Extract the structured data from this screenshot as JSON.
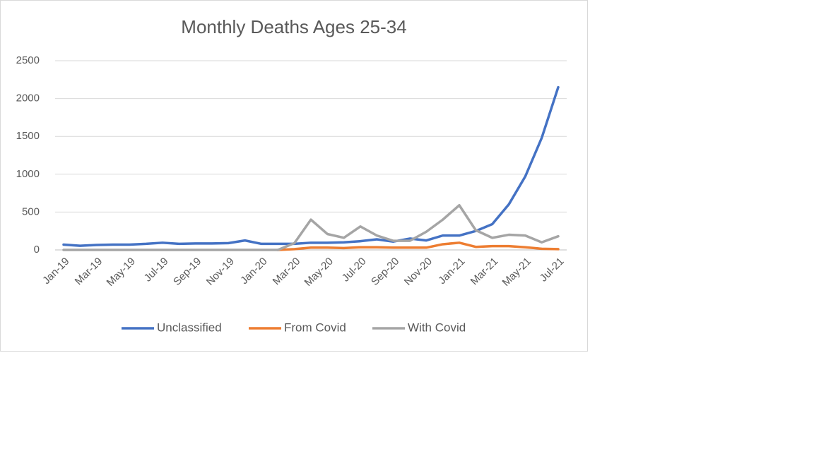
{
  "chart_data": {
    "type": "line",
    "title": "Monthly Deaths Ages 25-34",
    "categories": [
      "Jan-19",
      null,
      "Mar-19",
      null,
      "May-19",
      null,
      "Jul-19",
      null,
      "Sep-19",
      null,
      "Nov-19",
      null,
      "Jan-20",
      null,
      "Mar-20",
      null,
      "May-20",
      null,
      "Jul-20",
      null,
      "Sep-20",
      null,
      "Nov-20",
      null,
      "Jan-21",
      null,
      "Mar-21",
      null,
      "May-21",
      null,
      "Jul-21"
    ],
    "series": [
      {
        "name": "Unclassified",
        "color": "#4472c4",
        "values": [
          70,
          55,
          65,
          70,
          70,
          80,
          95,
          80,
          85,
          85,
          90,
          125,
          80,
          80,
          80,
          95,
          95,
          100,
          115,
          140,
          110,
          150,
          125,
          190,
          190,
          250,
          340,
          600,
          970,
          1480,
          2150
        ]
      },
      {
        "name": "From Covid",
        "color": "#ed7d31",
        "values": [
          null,
          null,
          null,
          null,
          null,
          null,
          null,
          null,
          null,
          null,
          null,
          null,
          null,
          0,
          10,
          30,
          30,
          25,
          35,
          35,
          30,
          30,
          30,
          75,
          95,
          40,
          50,
          50,
          35,
          15,
          10
        ]
      },
      {
        "name": "With Covid",
        "color": "#a5a5a5",
        "values": [
          0,
          0,
          0,
          0,
          0,
          0,
          0,
          0,
          0,
          0,
          0,
          0,
          0,
          0,
          90,
          400,
          210,
          160,
          310,
          190,
          120,
          120,
          240,
          400,
          590,
          260,
          160,
          200,
          190,
          100,
          180
        ]
      }
    ],
    "ylim": [
      0,
      2500
    ],
    "yticks": [
      0,
      500,
      1000,
      1500,
      2000,
      2500
    ],
    "grid": true,
    "legend": "bottom"
  }
}
